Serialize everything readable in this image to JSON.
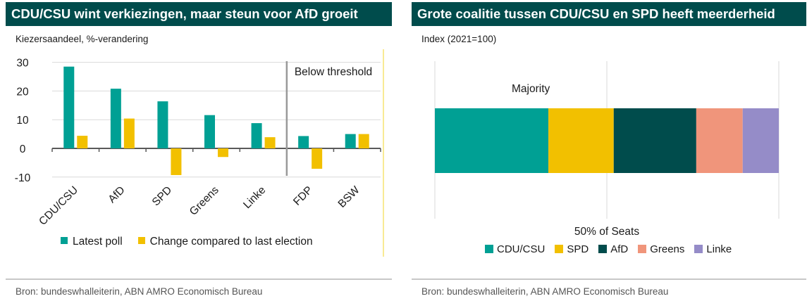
{
  "colors": {
    "title_bg": "#004c4c",
    "teal": "#00a094",
    "yellow": "#f2c000",
    "dark_teal": "#004c4c",
    "salmon": "#f0957b",
    "lavender": "#958cc8",
    "gridline": "#d9d9d9",
    "divider": "#999999",
    "border_yellow": "#f5e470"
  },
  "left_panel": {
    "title": "CDU/CSU wint verkiezingen, maar steun voor AfD groeit",
    "subtitle": "Kiezersaandeel, %-verandering",
    "source": "Bron: bundeswhalleiterin, ABN AMRO Economisch Bureau"
  },
  "right_panel": {
    "title": "Grote coalitie tussen CDU/CSU en SPD heeft meerderheid",
    "subtitle": "Index (2021=100)",
    "source": "Bron: bundeswhalleiterin, ABN AMRO Economisch Bureau"
  },
  "chart_data": [
    {
      "type": "bar",
      "categories": [
        "CDU/CSU",
        "AfD",
        "SPD",
        "Greens",
        "Linke",
        "FDP",
        "BSW"
      ],
      "series": [
        {
          "name": "Latest poll",
          "color": "#00a094",
          "values": [
            28.5,
            20.8,
            16.4,
            11.6,
            8.8,
            4.3,
            5.0
          ]
        },
        {
          "name": "Change compared to last election",
          "color": "#f2c000",
          "values": [
            4.4,
            10.4,
            -9.3,
            -3.0,
            3.9,
            -7.1,
            5.0
          ]
        }
      ],
      "ylim": [
        -10,
        30
      ],
      "yticks": [
        -10,
        0,
        10,
        20,
        30
      ],
      "ytick_labels": [
        "-10",
        "0",
        "10",
        "20",
        "30"
      ],
      "grid": true,
      "annotation": {
        "text": "Below threshold",
        "between_categories": [
          "Linke",
          "FDP"
        ]
      },
      "legend_position": "bottom"
    },
    {
      "type": "bar",
      "orientation": "horizontal-stacked",
      "segments": [
        {
          "name": "CDU/CSU",
          "color": "#00a094",
          "value": 33
        },
        {
          "name": "SPD",
          "color": "#f2c000",
          "value": 19
        },
        {
          "name": "AfD",
          "color": "#004c4c",
          "value": 24
        },
        {
          "name": "Greens",
          "color": "#f0957b",
          "value": 13.5
        },
        {
          "name": "Linke",
          "color": "#958cc8",
          "value": 10.5
        }
      ],
      "xlim": [
        0,
        100
      ],
      "reference_line": {
        "value": 50,
        "label": "50% of Seats"
      },
      "annotation": "Majority",
      "grid": true,
      "legend_position": "bottom"
    }
  ]
}
